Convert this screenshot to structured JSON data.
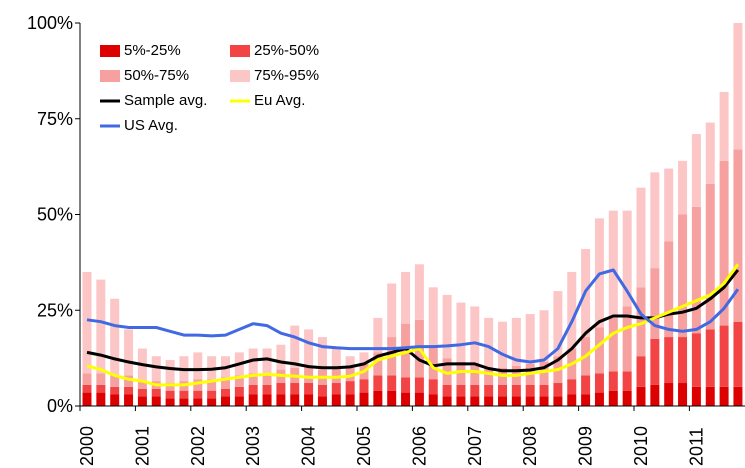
{
  "chart_data": {
    "type": "bar",
    "stacked": true,
    "categories": [
      "2000",
      null,
      null,
      null,
      "2001",
      null,
      null,
      null,
      "2002",
      null,
      null,
      null,
      "2003",
      null,
      null,
      null,
      "2004",
      null,
      null,
      null,
      "2005",
      null,
      null,
      null,
      "2006",
      null,
      null,
      null,
      "2007",
      null,
      null,
      null,
      "2008",
      null,
      null,
      null,
      "2009",
      null,
      null,
      null,
      "2010",
      null,
      null,
      null,
      "2011",
      null,
      null,
      null
    ],
    "ylim": [
      0,
      100
    ],
    "yticks": [
      {
        "value": 0,
        "label": "0%"
      },
      {
        "value": 25,
        "label": "25%"
      },
      {
        "value": 50,
        "label": "50%"
      },
      {
        "value": 75,
        "label": "75%"
      },
      {
        "value": 100,
        "label": "100%"
      }
    ],
    "grid": false,
    "legend": "top-left",
    "series": [
      {
        "name": "5%-25%",
        "type": "bar",
        "color": "#dd0000",
        "values": [
          3.5,
          3.5,
          3,
          3,
          2.5,
          2.5,
          2,
          2,
          2,
          2,
          2.5,
          2.5,
          3,
          3,
          3,
          3,
          3,
          2.5,
          3,
          3,
          3.5,
          4,
          4,
          3.5,
          3.5,
          3,
          2.5,
          2.5,
          2.5,
          2.5,
          2.5,
          2.5,
          2.5,
          2.5,
          2.5,
          3,
          3,
          3.5,
          4,
          4,
          5,
          5.5,
          6,
          6,
          5,
          5,
          5,
          5
        ]
      },
      {
        "name": "25%-50%",
        "type": "bar",
        "color": "#f24444",
        "values": [
          2,
          2,
          2,
          2,
          2,
          2,
          2,
          2,
          2,
          2,
          2,
          2.5,
          2.5,
          2.5,
          3,
          3,
          3,
          3,
          3,
          3.5,
          3.5,
          4,
          4,
          4,
          4,
          4,
          3,
          3,
          3,
          3,
          3,
          3,
          3,
          3,
          3.5,
          4,
          5,
          5,
          5,
          5,
          8,
          12,
          12,
          12,
          14,
          15,
          16,
          17
        ]
      },
      {
        "name": "50%-75%",
        "type": "bar",
        "color": "#f7a0a0",
        "values": [
          3,
          3,
          3,
          3,
          2,
          2,
          2,
          2.5,
          3,
          3,
          3,
          3,
          3,
          3,
          3.5,
          4,
          4,
          4,
          4,
          3.5,
          4,
          6,
          10,
          14,
          15,
          9,
          7,
          6,
          5,
          4.5,
          4.5,
          5,
          5.5,
          6,
          7,
          8,
          10,
          12,
          14,
          17,
          18,
          18.5,
          25,
          32,
          33,
          38,
          43,
          45
        ]
      },
      {
        "name": "75%-95%",
        "type": "bar",
        "color": "#fcc6c6",
        "values": [
          26.5,
          24.5,
          20,
          12,
          8.5,
          6.5,
          6,
          6.5,
          7,
          6,
          5.5,
          6,
          6.5,
          6.5,
          6.5,
          11,
          10,
          8.5,
          5,
          3,
          3,
          9,
          14,
          13.5,
          14.5,
          15,
          16.5,
          15.5,
          15.5,
          13,
          12,
          12.5,
          13,
          13.5,
          17,
          20,
          23,
          28.5,
          28,
          25,
          26,
          25,
          19,
          14,
          19,
          16,
          18,
          33
        ]
      },
      {
        "name": "Sample avg.",
        "type": "line",
        "color": "#000000",
        "values": [
          14,
          13.3,
          12.3,
          11.5,
          10.8,
          10.2,
          9.8,
          9.5,
          9.5,
          9.6,
          10,
          11,
          12,
          12.3,
          11.5,
          11,
          10.3,
          10,
          10,
          10.2,
          11,
          13,
          14,
          15,
          12,
          10.5,
          11,
          11,
          11,
          9.8,
          9.2,
          9.2,
          9.4,
          10,
          12,
          15,
          19,
          22,
          23.5,
          23.5,
          23,
          23,
          24,
          24.5,
          25.5,
          28,
          31,
          35.5
        ]
      },
      {
        "name": "Eu Avg.",
        "type": "line",
        "color": "#ffff00",
        "values": [
          10.5,
          9.5,
          8,
          7,
          6.5,
          5.5,
          5.5,
          5.5,
          6,
          6.5,
          7,
          7.5,
          8,
          8.3,
          8,
          7.8,
          7.5,
          7.5,
          7.5,
          7.8,
          9,
          12,
          13,
          14,
          15,
          10,
          8.5,
          9,
          9,
          8.5,
          8,
          8,
          8.5,
          9,
          9.5,
          11,
          13,
          16,
          19,
          20.5,
          21.5,
          23,
          24.5,
          26,
          27.5,
          29,
          32,
          37
        ]
      },
      {
        "name": "US Avg.",
        "type": "line",
        "color": "#4169e1",
        "values": [
          22.5,
          22,
          21,
          20.5,
          20.5,
          20.5,
          19.5,
          18.5,
          18.5,
          18.3,
          18.5,
          20,
          21.5,
          21,
          19,
          18,
          16.5,
          15.5,
          15.2,
          15,
          15,
          15,
          15,
          15.2,
          15.5,
          15.5,
          15.7,
          16,
          16.5,
          15.5,
          13.5,
          12,
          11.5,
          12,
          15,
          22,
          30,
          34.5,
          35.5,
          30,
          24,
          21,
          20,
          19.5,
          20,
          22,
          25.5,
          30.5
        ]
      }
    ]
  }
}
